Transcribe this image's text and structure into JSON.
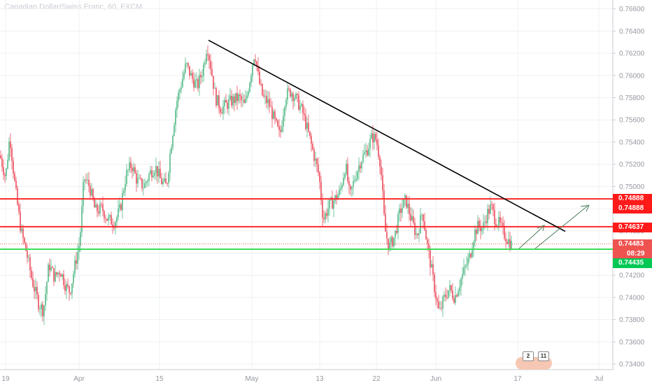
{
  "chart_title": "Canadian Dollar/Swiss Franc, 60, FXCM",
  "chart_data": {
    "type": "candlestick",
    "title": "Canadian Dollar/Swiss Franc, 60, FXCM",
    "x_tick_labels": [
      "19",
      "Apr",
      "15",
      "May",
      "13",
      "22",
      "Jun",
      "17",
      "Jul"
    ],
    "y_tick_labels": [
      "0.76600",
      "0.76400",
      "0.76200",
      "0.76000",
      "0.75800",
      "0.75600",
      "0.75400",
      "0.75200",
      "0.75000",
      "0.74800",
      "0.74600",
      "0.74400",
      "0.74200",
      "0.74000",
      "0.73800",
      "0.73600",
      "0.73400"
    ],
    "ylim": [
      0.7335,
      0.7668
    ],
    "price_path": [
      [
        0,
        0.7528
      ],
      [
        8,
        0.7508
      ],
      [
        14,
        0.7546
      ],
      [
        22,
        0.7497
      ],
      [
        30,
        0.746
      ],
      [
        38,
        0.744
      ],
      [
        46,
        0.7415
      ],
      [
        55,
        0.7395
      ],
      [
        62,
        0.7388
      ],
      [
        70,
        0.743
      ],
      [
        78,
        0.7418
      ],
      [
        86,
        0.7425
      ],
      [
        94,
        0.741
      ],
      [
        100,
        0.7405
      ],
      [
        108,
        0.7432
      ],
      [
        114,
        0.745
      ],
      [
        120,
        0.7508
      ],
      [
        128,
        0.75
      ],
      [
        136,
        0.7478
      ],
      [
        146,
        0.748
      ],
      [
        154,
        0.747
      ],
      [
        164,
        0.7468
      ],
      [
        172,
        0.748
      ],
      [
        180,
        0.751
      ],
      [
        188,
        0.752
      ],
      [
        196,
        0.7505
      ],
      [
        206,
        0.75
      ],
      [
        214,
        0.7512
      ],
      [
        222,
        0.7518
      ],
      [
        230,
        0.7505
      ],
      [
        238,
        0.75
      ],
      [
        244,
        0.7535
      ],
      [
        252,
        0.7575
      ],
      [
        258,
        0.759
      ],
      [
        266,
        0.761
      ],
      [
        274,
        0.7598
      ],
      [
        282,
        0.759
      ],
      [
        290,
        0.7605
      ],
      [
        296,
        0.7628
      ],
      [
        302,
        0.7605
      ],
      [
        308,
        0.758
      ],
      [
        316,
        0.757
      ],
      [
        326,
        0.7575
      ],
      [
        334,
        0.7578
      ],
      [
        342,
        0.758
      ],
      [
        350,
        0.7572
      ],
      [
        358,
        0.76
      ],
      [
        364,
        0.7622
      ],
      [
        370,
        0.7595
      ],
      [
        376,
        0.758
      ],
      [
        384,
        0.7575
      ],
      [
        392,
        0.756
      ],
      [
        400,
        0.7545
      ],
      [
        408,
        0.7582
      ],
      [
        416,
        0.7586
      ],
      [
        424,
        0.7578
      ],
      [
        432,
        0.7568
      ],
      [
        440,
        0.755
      ],
      [
        448,
        0.753
      ],
      [
        456,
        0.751
      ],
      [
        462,
        0.747
      ],
      [
        470,
        0.7482
      ],
      [
        478,
        0.7488
      ],
      [
        486,
        0.7495
      ],
      [
        494,
        0.752
      ],
      [
        500,
        0.749
      ],
      [
        508,
        0.751
      ],
      [
        516,
        0.7524
      ],
      [
        524,
        0.7532
      ],
      [
        532,
        0.7545
      ],
      [
        538,
        0.7542
      ],
      [
        544,
        0.752
      ],
      [
        550,
        0.7462
      ],
      [
        556,
        0.7445
      ],
      [
        564,
        0.7455
      ],
      [
        572,
        0.7478
      ],
      [
        580,
        0.7488
      ],
      [
        588,
        0.747
      ],
      [
        596,
        0.7455
      ],
      [
        604,
        0.7478
      ],
      [
        610,
        0.745
      ],
      [
        616,
        0.7428
      ],
      [
        622,
        0.7405
      ],
      [
        628,
        0.7385
      ],
      [
        634,
        0.7398
      ],
      [
        642,
        0.7408
      ],
      [
        650,
        0.74
      ],
      [
        658,
        0.7415
      ],
      [
        664,
        0.7425
      ],
      [
        672,
        0.7438
      ],
      [
        678,
        0.7458
      ],
      [
        684,
        0.7465
      ],
      [
        690,
        0.7462
      ],
      [
        696,
        0.7475
      ],
      [
        702,
        0.7482
      ],
      [
        708,
        0.747
      ],
      [
        714,
        0.7466
      ],
      [
        720,
        0.7458
      ],
      [
        726,
        0.7452
      ],
      [
        732,
        0.7447
      ]
    ],
    "levels": [
      {
        "name": "resistance_upper",
        "value": 0.74888,
        "color": "#ff2a2a"
      },
      {
        "name": "resistance_lower",
        "value": 0.74637,
        "color": "#ff2a2a"
      },
      {
        "name": "support",
        "value": 0.74435,
        "color": "#3ddc55"
      }
    ],
    "current_price": 0.74483,
    "colors": {
      "up": "#53b987",
      "down": "#eb4d5c",
      "grid": "#eef0f3",
      "axis_text": "#9598a1"
    }
  },
  "price_badges": [
    {
      "label": "0.74888",
      "color": "#ff1a1a"
    },
    {
      "label": "0.74888",
      "color": "#ff1a1a"
    },
    {
      "label": "0.74637",
      "color": "#ff1a1a"
    },
    {
      "label": "0.74483",
      "color": "#ef5350"
    },
    {
      "label": "08:29",
      "color": "#ef5350"
    },
    {
      "label": "0.74435",
      "color": "#00c853"
    }
  ],
  "logo_badges": [
    "2",
    "11"
  ]
}
